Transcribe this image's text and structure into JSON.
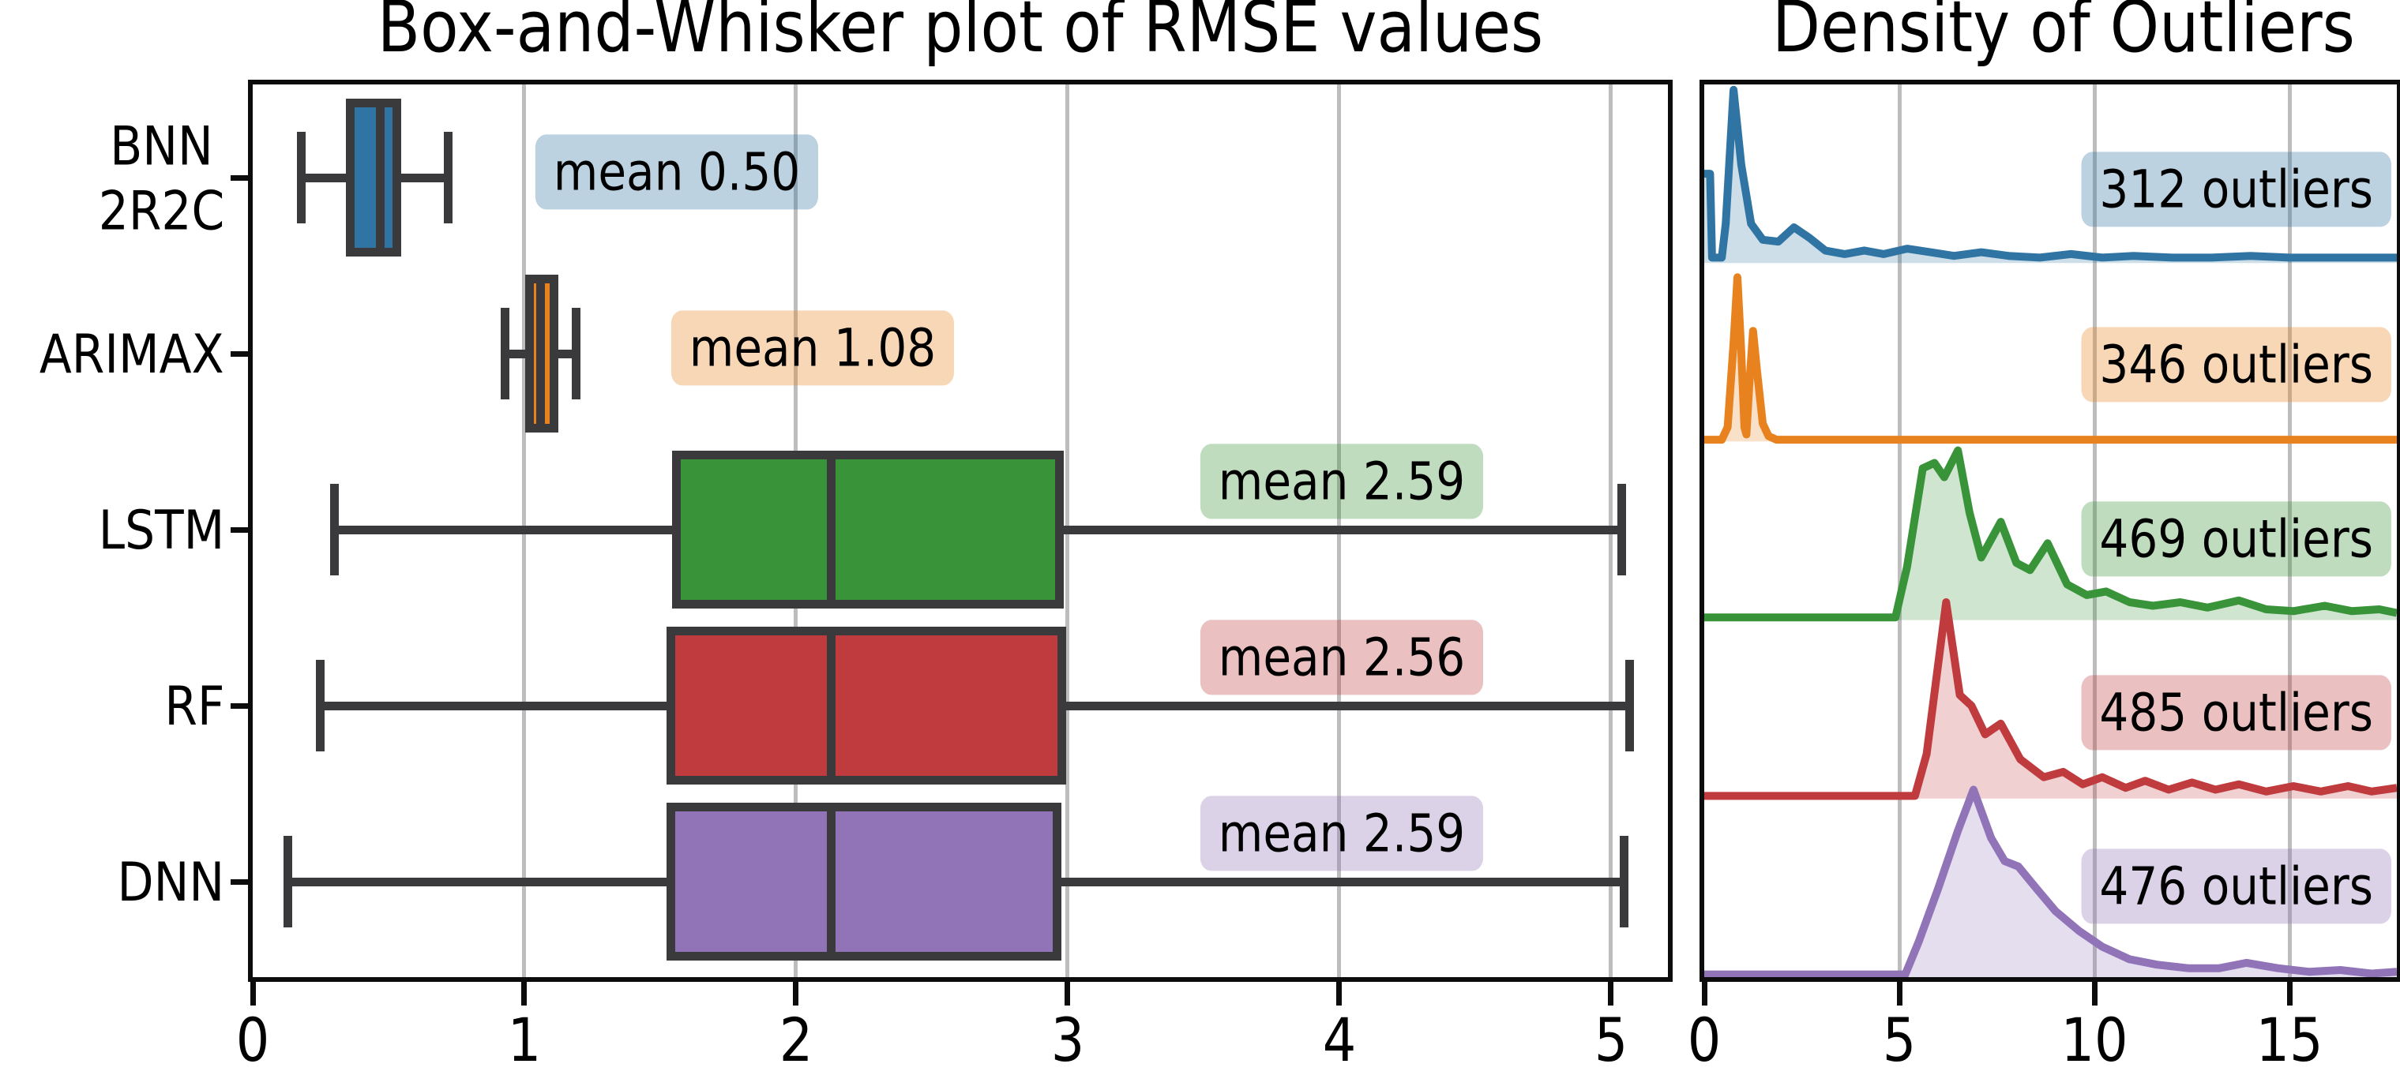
{
  "figure": {
    "background": "#ffffff"
  },
  "chart_data": [
    {
      "type": "box",
      "title": "Box-and-Whisker plot of RMSE values",
      "orientation": "horizontal",
      "xlim": [
        0,
        5.21
      ],
      "xticks": [
        "0",
        "1",
        "2",
        "3",
        "4",
        "5"
      ],
      "grid": true,
      "edge_color": "#3a3a3c",
      "rows": [
        {
          "label_lines": [
            "BNN",
            "2R2C"
          ],
          "color": "#2f74a2",
          "whisker_low": 0.18,
          "q1": 0.36,
          "median": 0.47,
          "q3": 0.53,
          "whisker_high": 0.72,
          "mean": 0.5,
          "mean_label": "mean 0.50",
          "mean_label_x": 1.56
        },
        {
          "label_lines": [
            "ARIMAX"
          ],
          "color": "#e8821e",
          "whisker_low": 0.93,
          "q1": 1.02,
          "median": 1.06,
          "q3": 1.11,
          "whisker_high": 1.19,
          "mean": 1.08,
          "mean_label": "mean 1.08",
          "mean_label_x": 2.06
        },
        {
          "label_lines": [
            "LSTM"
          ],
          "color": "#389339",
          "whisker_low": 0.3,
          "q1": 1.56,
          "median": 2.13,
          "q3": 2.97,
          "whisker_high": 5.04,
          "mean": 2.59,
          "mean_label": "mean 2.59",
          "mean_label_x": 4.01
        },
        {
          "label_lines": [
            "RF"
          ],
          "color": "#bf3b3d",
          "whisker_low": 0.25,
          "q1": 1.54,
          "median": 2.13,
          "q3": 2.98,
          "whisker_high": 5.07,
          "mean": 2.56,
          "mean_label": "mean 2.56",
          "mean_label_x": 4.01
        },
        {
          "label_lines": [
            "DNN"
          ],
          "color": "#9173b8",
          "whisker_low": 0.13,
          "q1": 1.54,
          "median": 2.13,
          "q3": 2.96,
          "whisker_high": 5.05,
          "mean": 2.59,
          "mean_label": "mean 2.59",
          "mean_label_x": 4.01
        }
      ]
    },
    {
      "type": "area",
      "title": "Density of Outliers",
      "xlim": [
        0,
        17.75
      ],
      "xticks": [
        "0",
        "5",
        "10",
        "15"
      ],
      "grid": true,
      "series": [
        {
          "label": "312 outliers",
          "color": "#2f74a2",
          "points": [
            [
              0,
              0.5
            ],
            [
              0.15,
              0.5
            ],
            [
              0.2,
              0.03
            ],
            [
              0.45,
              0.03
            ],
            [
              0.55,
              0.22
            ],
            [
              0.75,
              0.97
            ],
            [
              0.95,
              0.55
            ],
            [
              1.2,
              0.22
            ],
            [
              1.5,
              0.13
            ],
            [
              1.9,
              0.12
            ],
            [
              2.3,
              0.2
            ],
            [
              2.7,
              0.14
            ],
            [
              3.1,
              0.07
            ],
            [
              3.6,
              0.05
            ],
            [
              4.1,
              0.07
            ],
            [
              4.6,
              0.05
            ],
            [
              5.2,
              0.08
            ],
            [
              5.8,
              0.06
            ],
            [
              6.4,
              0.04
            ],
            [
              7.1,
              0.06
            ],
            [
              7.8,
              0.04
            ],
            [
              8.6,
              0.03
            ],
            [
              9.4,
              0.05
            ],
            [
              10.2,
              0.03
            ],
            [
              11,
              0.04
            ],
            [
              12,
              0.03
            ],
            [
              13,
              0.03
            ],
            [
              14,
              0.04
            ],
            [
              15,
              0.03
            ],
            [
              16,
              0.03
            ],
            [
              17,
              0.03
            ],
            [
              17.75,
              0.03
            ]
          ]
        },
        {
          "label": "346 outliers",
          "color": "#e8821e",
          "points": [
            [
              0,
              0.01
            ],
            [
              0.45,
              0.01
            ],
            [
              0.6,
              0.08
            ],
            [
              0.75,
              0.55
            ],
            [
              0.85,
              0.92
            ],
            [
              0.95,
              0.5
            ],
            [
              1.03,
              0.08
            ],
            [
              1.08,
              0.04
            ],
            [
              1.15,
              0.3
            ],
            [
              1.25,
              0.62
            ],
            [
              1.35,
              0.4
            ],
            [
              1.5,
              0.1
            ],
            [
              1.65,
              0.03
            ],
            [
              1.85,
              0.01
            ],
            [
              2.5,
              0.01
            ],
            [
              17.75,
              0.01
            ]
          ]
        },
        {
          "label": "469 outliers",
          "color": "#389339",
          "points": [
            [
              0,
              0.015
            ],
            [
              4.9,
              0.015
            ],
            [
              5.2,
              0.3
            ],
            [
              5.6,
              0.85
            ],
            [
              5.9,
              0.88
            ],
            [
              6.15,
              0.8
            ],
            [
              6.5,
              0.95
            ],
            [
              6.8,
              0.6
            ],
            [
              7.1,
              0.35
            ],
            [
              7.6,
              0.55
            ],
            [
              8,
              0.32
            ],
            [
              8.35,
              0.28
            ],
            [
              8.8,
              0.43
            ],
            [
              9.3,
              0.2
            ],
            [
              9.8,
              0.14
            ],
            [
              10.3,
              0.16
            ],
            [
              10.9,
              0.1
            ],
            [
              11.5,
              0.08
            ],
            [
              12.2,
              0.1
            ],
            [
              12.9,
              0.07
            ],
            [
              13.7,
              0.11
            ],
            [
              14.4,
              0.06
            ],
            [
              15.1,
              0.05
            ],
            [
              15.9,
              0.08
            ],
            [
              16.6,
              0.05
            ],
            [
              17.3,
              0.06
            ],
            [
              17.75,
              0.04
            ]
          ]
        },
        {
          "label": "485 outliers",
          "color": "#bf3b3d",
          "points": [
            [
              0,
              0.015
            ],
            [
              5.4,
              0.015
            ],
            [
              5.7,
              0.25
            ],
            [
              6.2,
              1.1
            ],
            [
              6.55,
              0.58
            ],
            [
              6.85,
              0.52
            ],
            [
              7.2,
              0.36
            ],
            [
              7.6,
              0.42
            ],
            [
              8.1,
              0.22
            ],
            [
              8.7,
              0.12
            ],
            [
              9.2,
              0.15
            ],
            [
              9.7,
              0.08
            ],
            [
              10.2,
              0.12
            ],
            [
              10.8,
              0.06
            ],
            [
              11.3,
              0.1
            ],
            [
              11.9,
              0.05
            ],
            [
              12.5,
              0.09
            ],
            [
              13.1,
              0.05
            ],
            [
              13.7,
              0.08
            ],
            [
              14.4,
              0.04
            ],
            [
              15.1,
              0.07
            ],
            [
              15.8,
              0.04
            ],
            [
              16.5,
              0.07
            ],
            [
              17.1,
              0.04
            ],
            [
              17.75,
              0.06
            ]
          ]
        },
        {
          "label": "476 outliers",
          "color": "#9173b8",
          "points": [
            [
              0,
              0.015
            ],
            [
              5.15,
              0.015
            ],
            [
              5.5,
              0.2
            ],
            [
              6,
              0.5
            ],
            [
              6.5,
              0.82
            ],
            [
              6.9,
              1.05
            ],
            [
              7.35,
              0.78
            ],
            [
              7.7,
              0.65
            ],
            [
              8.05,
              0.62
            ],
            [
              8.5,
              0.5
            ],
            [
              9,
              0.37
            ],
            [
              9.6,
              0.26
            ],
            [
              10.2,
              0.17
            ],
            [
              10.9,
              0.1
            ],
            [
              11.6,
              0.07
            ],
            [
              12.4,
              0.05
            ],
            [
              13.2,
              0.05
            ],
            [
              13.9,
              0.08
            ],
            [
              14.7,
              0.05
            ],
            [
              15.5,
              0.03
            ],
            [
              16.3,
              0.04
            ],
            [
              17.1,
              0.02
            ],
            [
              17.75,
              0.03
            ]
          ]
        }
      ]
    }
  ]
}
